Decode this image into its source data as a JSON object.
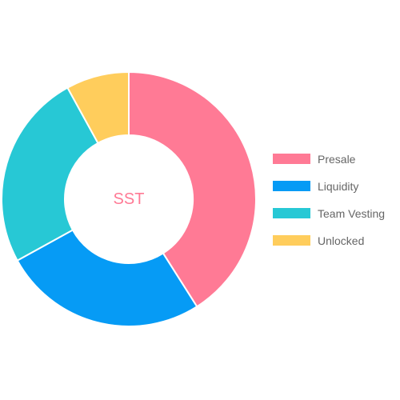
{
  "chart_data": {
    "type": "pie",
    "variant": "doughnut",
    "center_text": "SST",
    "categories": [
      "Presale",
      "Liquidity",
      "Team Vesting",
      "Unlocked"
    ],
    "values": [
      41,
      26,
      25,
      8
    ],
    "colors": [
      "#ff7a95",
      "#069bf5",
      "#27c8d5",
      "#ffcd5c"
    ],
    "center_text_color": "#ff7a95",
    "legend_position": "right"
  }
}
